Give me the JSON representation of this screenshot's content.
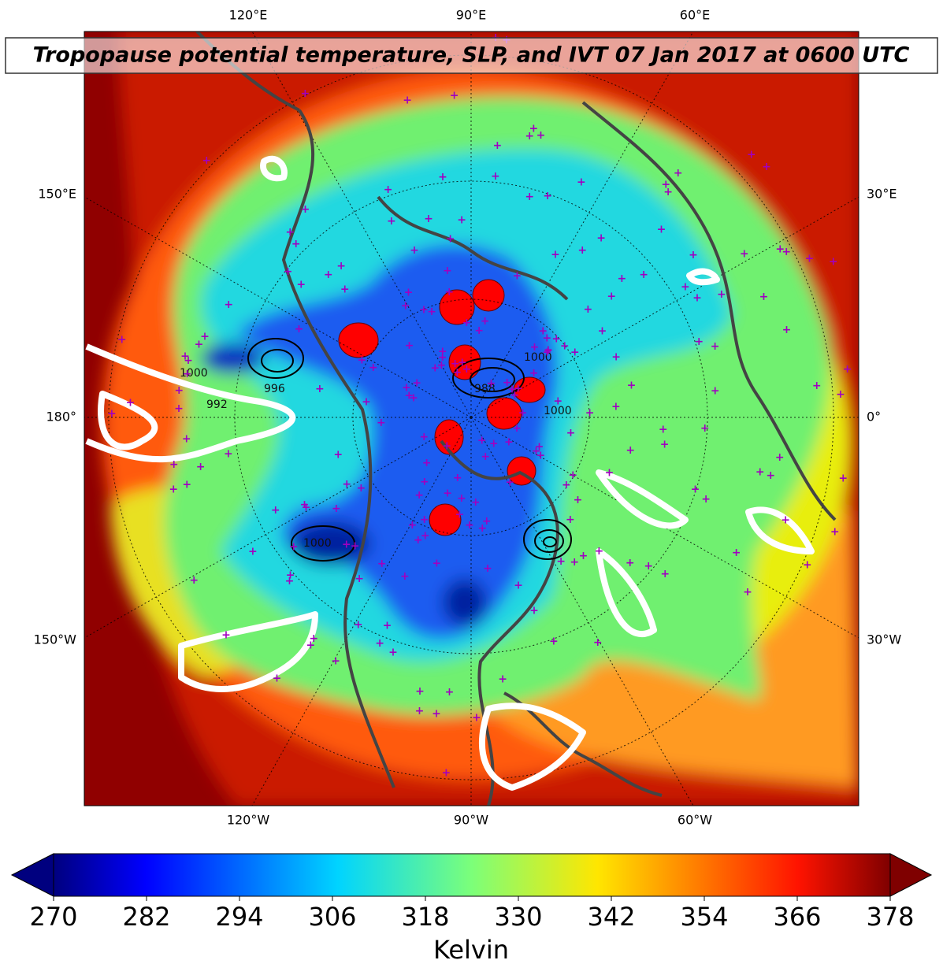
{
  "map": {
    "title": "Tropopause potential temperature, SLP, and IVT 07 Jan 2017 at 0600 UTC",
    "top_labels": [
      "120°E",
      "90°E",
      "60°E"
    ],
    "bottom_labels": [
      "120°W",
      "90°W",
      "60°W"
    ],
    "left_labels": [
      "150°E",
      "180°",
      "150°W"
    ],
    "right_labels": [
      "30°E",
      "0°",
      "30°W"
    ],
    "contour_labels": [
      "1000",
      "996",
      "992",
      "1000",
      "988",
      "1000",
      "1000"
    ]
  },
  "colorbar": {
    "label": "Kelvin",
    "colormap": "jet",
    "lim": [
      270,
      378
    ],
    "ticks": [
      270,
      282,
      294,
      306,
      318,
      330,
      342,
      354,
      366,
      378
    ]
  }
}
